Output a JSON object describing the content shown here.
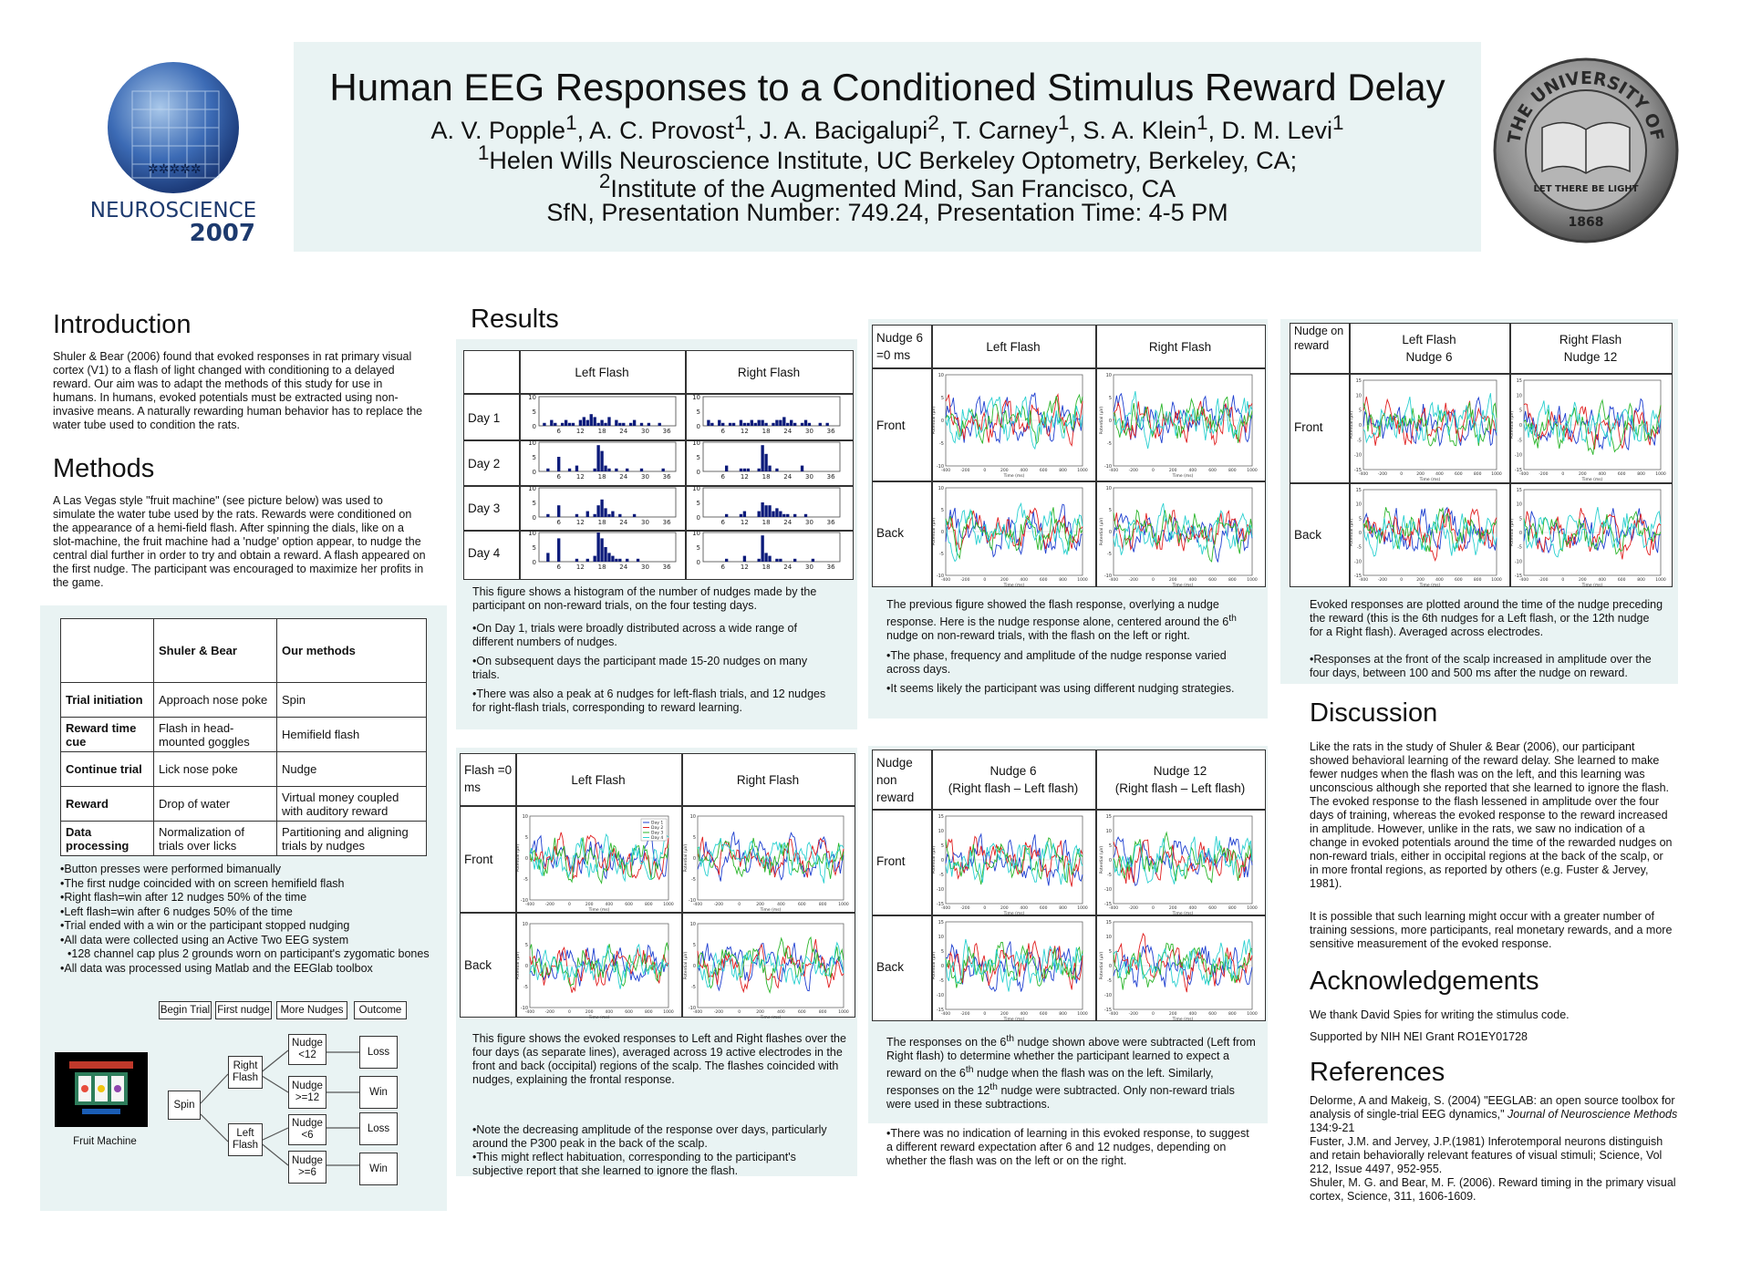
{
  "header": {
    "title": "Human EEG Responses to a Conditioned Stimulus Reward Delay",
    "authors_html": "A. V. Popple<sup>1</sup>, A. C. Provost<sup>1</sup>, J. A. Bacigalupi<sup>2</sup>, T. Carney<sup>1</sup>, S. A. Klein<sup>1</sup>, D. M. Levi<sup>1</sup>",
    "affil1_html": "<sup>1</sup>Helen Wills Neuroscience Institute, UC Berkeley Optometry, Berkeley, CA;",
    "affil2_html": "<sup>2</sup>Institute of the Augmented Mind, San Francisco, CA",
    "session": "SfN, Presentation Number: 749.24, Presentation Time: 4-5 PM",
    "logo_left_text": "NEUROSCIENCE",
    "logo_left_year": "2007",
    "seal_top": "THE UNIVERSITY OF CALIFORNIA",
    "seal_motto": "LET THERE BE LIGHT",
    "seal_year": "1868"
  },
  "introduction": {
    "heading": "Introduction",
    "text": "Shuler & Bear (2006) found that evoked responses in rat primary visual cortex (V1) to a flash of light changed with conditioning to a delayed reward. Our aim was to adapt the methods of this study for use in humans. In humans, evoked potentials must be extracted using non-invasive means. A naturally rewarding human behavior has to replace the water tube used to condition the rats."
  },
  "methods": {
    "heading": "Methods",
    "text": "A Las Vegas style \"fruit machine\" (see picture below) was used to simulate the water tube used by the rats. Rewards were conditioned on the appearance of a hemi-field flash. After spinning the dials, like on a slot-machine, the fruit machine had a 'nudge' option appear, to nudge the central dial further in order to try and obtain a reward. A flash appeared on the first nudge. The participant was encouraged to maximize her profits in the game.",
    "table_headers": [
      "",
      "Shuler & Bear",
      "Our methods"
    ],
    "table_rows": [
      [
        "Trial initiation",
        "Approach nose poke",
        "Spin"
      ],
      [
        "Reward time cue",
        "Flash in head-mounted goggles",
        "Hemifield flash"
      ],
      [
        "Continue trial",
        "Lick nose poke",
        "Nudge"
      ],
      [
        "Reward",
        "Drop of water",
        "Virtual money coupled with auditory reward"
      ],
      [
        "Data processing",
        "Normalization of trials over licks",
        "Partitioning and aligning trials by nudges"
      ]
    ],
    "bullets": [
      "•Button presses were performed bimanually",
      "•The first nudge coincided with on screen hemifield flash",
      "•Right flash=win after 12 nudges 50% of the time",
      "•Left flash=win after 6 nudges 50% of the time",
      "•Trial ended with a win or the participant stopped nudging",
      "•All data were collected using an Active Two EEG system",
      "  •128 channel cap plus 2 grounds worn on participant's zygomatic bones",
      "•All data was processed using Matlab and the EEGlab toolbox"
    ],
    "flow_header": [
      "Begin Trial",
      "First nudge",
      "More Nudges",
      "Outcome"
    ],
    "flow_spin": "Spin",
    "flow_left": "Left Flash",
    "flow_right": "Right Flash",
    "flow_n12": "Nudge <12",
    "flow_n12b": "Nudge >=12",
    "flow_n6": "Nudge <6",
    "flow_n6b": "Nudge >=6",
    "flow_loss": "Loss",
    "flow_win": "Win",
    "fruit_caption": "Fruit Machine"
  },
  "results": {
    "heading": "Results",
    "hist_cols": [
      "Left Flash",
      "Right Flash"
    ],
    "hist_rows": [
      "Day 1",
      "Day 2",
      "Day 3",
      "Day 4"
    ],
    "hist_caption": "This figure shows a histogram of the number of nudges made by the participant on non-reward trials, on the four testing days.",
    "hist_bullets": [
      "•On Day 1, trials were broadly distributed across a wide range of different numbers of nudges.",
      "•On subsequent days the participant made 15-20 nudges on many trials.",
      "•There was also a peak at 6 nudges for left-flash trials, and 12 nudges for right-flash trials, corresponding to reward learning."
    ],
    "flash_corner": "Flash =0 ms",
    "flash_cols": [
      "Left Flash",
      "Right Flash"
    ],
    "flash_rows": [
      "Front",
      "Back"
    ],
    "flash_legend": [
      "Day 1",
      "Day 2",
      "Day 3",
      "Day 4"
    ],
    "flash_caption": "This figure shows the evoked responses to Left and Right flashes over the four days (as separate lines), averaged across 19 active electrodes in the front and back (occipital) regions of the scalp. The flashes coincided with nudges, explaining the frontal response.",
    "flash_bullets": [
      "•Note the decreasing amplitude of the response over days, particularly around the P300 peak in the back of the scalp.",
      "•This might reflect habituation, corresponding to the participant's subjective report that she learned to ignore the flash."
    ],
    "n6_corner": "Nudge 6 =0 ms",
    "n6_cols": [
      "Left Flash",
      "Right Flash"
    ],
    "n6_rows": [
      "Front",
      "Back"
    ],
    "n6_caption_html": "The previous figure showed the flash response, overlying a nudge response. Here is the nudge response alone, centered around the 6<sup>th</sup> nudge on non-reward trials, with the flash on the left or right.",
    "n6_bullets": [
      "•The phase, frequency and amplitude of the nudge response varied across days.",
      "•It seems likely the participant was using different nudging strategies."
    ],
    "nnr_corner": "Nudge non reward",
    "nnr_cols": [
      "Nudge 6\n(Right flash – Left flash)",
      "Nudge 12\n(Right flash – Left flash)"
    ],
    "nnr_rows": [
      "Front",
      "Back"
    ],
    "nnr_caption_html": "The responses on the 6<sup>th</sup> nudge shown above were subtracted (Left from Right flash) to determine whether the participant learned to expect a reward on the 6<sup>th</sup> nudge when the flash was on the left. Similarly, responses on the 12<sup>th</sup> nudge were subtracted. Only non-reward trials were used in these subtractions.",
    "nnr_bullets": [
      "•There was no indication of learning in this evoked response, to suggest a different reward expectation after 6 and 12 nudges, depending on whether the flash was on the left or on the right."
    ],
    "nor_corner": "Nudge on reward",
    "nor_cols": [
      "Left Flash\nNudge 6",
      "Right Flash\nNudge 12"
    ],
    "nor_rows": [
      "Front",
      "Back"
    ],
    "nor_caption": "Evoked responses are plotted around the time of the nudge preceding the reward (this is the 6th nudges for a Left flash, or the 12th nudge for a Right flash). Averaged across electrodes.",
    "nor_bullets": [
      "•Responses at the front of the scalp increased in amplitude over the four days, between 100 and 500 ms after the nudge on reward."
    ]
  },
  "discussion": {
    "heading": "Discussion",
    "p1": "Like the rats in the study of Shuler & Bear (2006), our participant showed behavioral learning of the reward delay. She learned to make fewer nudges when the flash was on the left, and this learning was unconscious although she reported that she learned to ignore the flash. The evoked response to the flash lessened in amplitude over the four days of training, whereas the evoked response to the reward increased in amplitude. However, unlike in the rats, we saw no indication of a change in evoked potentials around the time of the rewarded nudges on non-reward trials, either in occipital regions at the back of the scalp, or in more frontal regions, as reported by others (e.g. Fuster & Jervey, 1981).",
    "p2": "It is possible that such learning might occur with a greater number of training sessions, more participants, real monetary rewards, and a more sensitive measurement of the evoked response."
  },
  "acknowledgements": {
    "heading": "Acknowledgements",
    "p1": "We thank David Spies for writing the stimulus code.",
    "p2": "Supported by NIH NEI Grant RO1EY01728"
  },
  "references": {
    "heading": "References",
    "items_html": [
      "Delorme, A and Makeig, S. (2004) \"EEGLAB: an open source toolbox for analysis of single-trial EEG dynamics,\" <i>Journal of Neuroscience Methods</i> 134:9-21",
      "Fuster, J.M. and Jervey, J.P.(1981) Inferotemporal neurons distinguish and retain behaviorally relevant features of visual stimuli; Science, Vol 212, Issue 4497, 952-955.",
      "Shuler, M. G. and Bear, M. F. (2006). Reward timing in the primary visual cortex, Science, 311, 1606-1609."
    ]
  },
  "chart_data": [
    {
      "type": "bar",
      "title": "",
      "xlabel": "",
      "ylabel": "",
      "ylim": [
        0,
        10
      ],
      "x_ticks": [
        "6",
        "12",
        "18",
        "24",
        "30",
        "36"
      ],
      "panels": [
        {
          "row": "Day 1",
          "col": "Left Flash",
          "values": [
            0,
            1,
            0,
            2,
            1,
            0,
            1,
            2,
            1,
            1,
            0,
            2,
            3,
            2,
            4,
            3,
            1,
            2,
            1,
            3,
            0,
            2,
            1,
            1,
            0,
            1,
            2,
            0,
            1,
            0,
            1,
            0,
            0,
            1,
            0,
            0,
            0,
            0
          ]
        },
        {
          "row": "Day 1",
          "col": "Right Flash",
          "values": [
            0,
            2,
            1,
            0,
            2,
            1,
            0,
            1,
            1,
            0,
            2,
            1,
            1,
            2,
            1,
            2,
            2,
            1,
            0,
            1,
            2,
            2,
            3,
            1,
            2,
            1,
            0,
            1,
            2,
            1,
            0,
            0,
            1,
            0,
            1,
            0,
            0,
            0
          ]
        },
        {
          "row": "Day 2",
          "col": "Left Flash",
          "values": [
            0,
            0,
            1,
            0,
            0,
            5,
            0,
            0,
            1,
            0,
            2,
            0,
            0,
            0,
            0,
            1,
            9,
            7,
            2,
            1,
            0,
            1,
            0,
            0,
            1,
            0,
            0,
            0,
            1,
            0,
            0,
            0,
            0,
            0,
            1,
            0,
            0,
            0
          ]
        },
        {
          "row": "Day 2",
          "col": "Right Flash",
          "values": [
            0,
            0,
            0,
            0,
            0,
            0,
            2,
            0,
            0,
            0,
            1,
            1,
            1,
            0,
            0,
            1,
            9,
            6,
            2,
            0,
            1,
            0,
            0,
            0,
            0,
            0,
            0,
            2,
            0,
            0,
            0,
            0,
            0,
            0,
            0,
            0,
            0,
            0
          ]
        },
        {
          "row": "Day 3",
          "col": "Left Flash",
          "values": [
            0,
            0,
            1,
            0,
            0,
            4,
            0,
            0,
            0,
            0,
            1,
            0,
            0,
            2,
            0,
            1,
            4,
            6,
            3,
            1,
            2,
            0,
            1,
            0,
            0,
            0,
            1,
            0,
            0,
            0,
            0,
            0,
            0,
            0,
            0,
            0,
            0,
            0
          ]
        },
        {
          "row": "Day 3",
          "col": "Right Flash",
          "values": [
            0,
            0,
            0,
            0,
            0,
            0,
            1,
            0,
            0,
            0,
            1,
            2,
            0,
            0,
            0,
            2,
            5,
            4,
            4,
            2,
            3,
            2,
            1,
            1,
            0,
            1,
            0,
            0,
            1,
            0,
            0,
            0,
            0,
            0,
            0,
            0,
            0,
            0
          ]
        },
        {
          "row": "Day 4",
          "col": "Left Flash",
          "values": [
            0,
            0,
            3,
            0,
            0,
            8,
            0,
            0,
            0,
            0,
            1,
            0,
            0,
            1,
            0,
            2,
            10,
            8,
            5,
            3,
            2,
            1,
            1,
            0,
            1,
            0,
            0,
            1,
            0,
            0,
            0,
            0,
            0,
            0,
            0,
            0,
            0,
            0
          ]
        },
        {
          "row": "Day 4",
          "col": "Right Flash",
          "values": [
            0,
            0,
            0,
            0,
            0,
            0,
            1,
            0,
            0,
            0,
            0,
            2,
            0,
            0,
            0,
            1,
            9,
            3,
            2,
            0,
            1,
            1,
            0,
            0,
            0,
            1,
            0,
            0,
            0,
            0,
            1,
            0,
            0,
            0,
            0,
            0,
            0,
            0
          ]
        }
      ]
    },
    {
      "type": "line",
      "title": "",
      "xlabel": "Time (ms)",
      "ylabel": "Potential (µV)",
      "xlim": [
        -400,
        1000
      ],
      "ylim": [
        -10,
        10
      ],
      "legend": "top-right",
      "legend_entries": [
        "Day 1",
        "Day 2",
        "Day 3",
        "Day 4"
      ],
      "series_colors": [
        "#1e3fd0",
        "#e01e1e",
        "#2ab52a",
        "#2ad0d0"
      ],
      "panels": [
        "Flash Left Front",
        "Flash Right Front",
        "Flash Left Back",
        "Flash Right Back"
      ]
    },
    {
      "type": "line",
      "title": "",
      "xlabel": "Time (ms)",
      "ylabel": "Potential (µV)",
      "xlim": [
        -400,
        1000
      ],
      "ylim": [
        -10,
        10
      ],
      "series_colors": [
        "#1e3fd0",
        "#e01e1e",
        "#2ab52a",
        "#2ad0d0"
      ],
      "panels": [
        "Nudge 6 Left Front",
        "Nudge 6 Right Front",
        "Nudge 6 Left Back",
        "Nudge 6 Right Back"
      ]
    },
    {
      "type": "line",
      "title": "",
      "xlabel": "Time (ms)",
      "ylabel": "Potential (µV)",
      "xlim": [
        -400,
        1000
      ],
      "ylim": [
        -15,
        15
      ],
      "series_colors": [
        "#1e3fd0",
        "#e01e1e",
        "#2ab52a",
        "#2ad0d0"
      ],
      "panels": [
        "Nudge 6 Diff Front",
        "Nudge 12 Diff Front",
        "Nudge 6 Diff Back",
        "Nudge 12 Diff Back"
      ]
    },
    {
      "type": "line",
      "title": "",
      "xlabel": "Time (ms)",
      "ylabel": "Potential (µV)",
      "xlim": [
        -400,
        1000
      ],
      "ylim": [
        -15,
        15
      ],
      "series_colors": [
        "#1e3fd0",
        "#e01e1e",
        "#2ab52a",
        "#2ad0d0"
      ],
      "panels": [
        "Reward Left Nudge 6 Front",
        "Reward Right Nudge 12 Front",
        "Reward Left Nudge 6 Back",
        "Reward Right Nudge 12 Back"
      ]
    }
  ]
}
